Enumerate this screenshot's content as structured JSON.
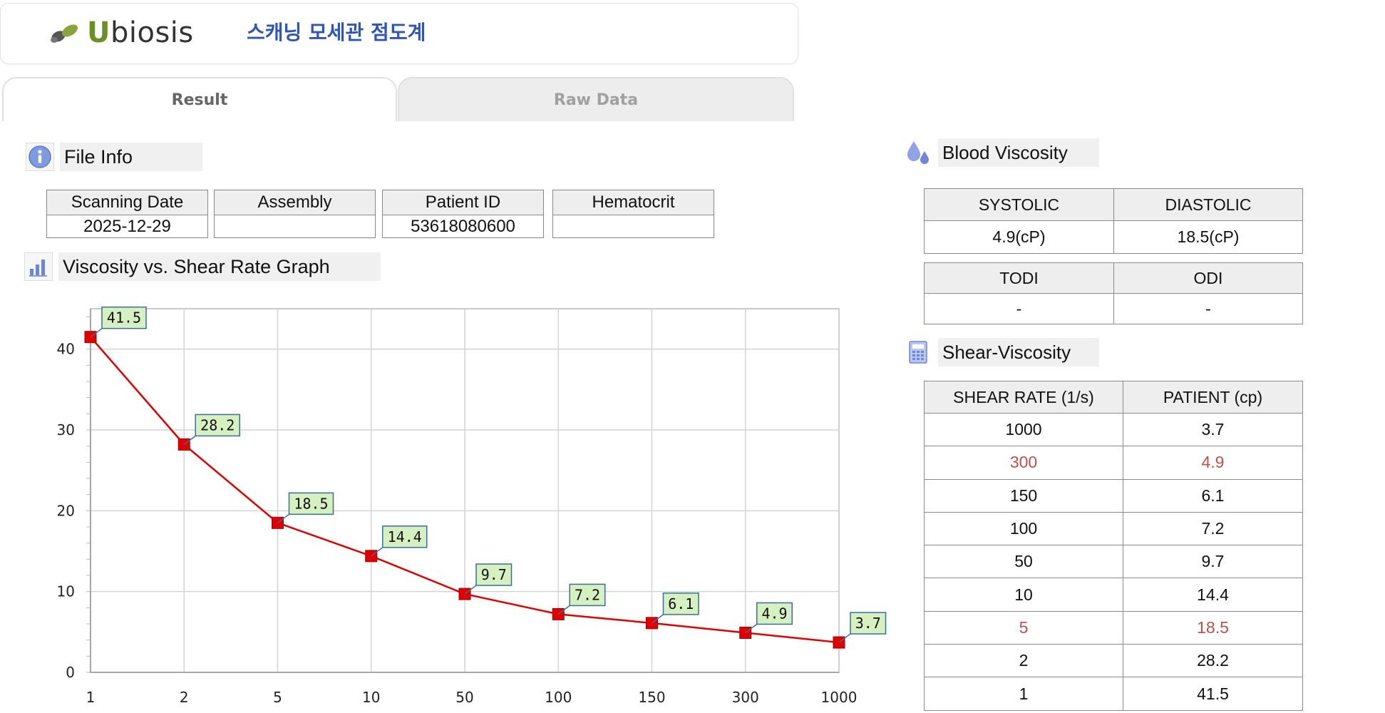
{
  "app": {
    "logo_text": "biosis",
    "logo_initial": "U",
    "title": "스캐닝 모세관 점도계"
  },
  "tabs": [
    {
      "label": "Result",
      "active": true
    },
    {
      "label": "Raw Data",
      "active": false
    }
  ],
  "file_info": {
    "heading": "File Info",
    "columns": [
      {
        "label": "Scanning Date",
        "value": "2025-12-29"
      },
      {
        "label": "Assembly",
        "value": ""
      },
      {
        "label": "Patient ID",
        "value": "53618080600"
      },
      {
        "label": "Hematocrit",
        "value": ""
      }
    ]
  },
  "graph": {
    "heading": "Viscosity vs. Shear Rate Graph"
  },
  "chart_data": {
    "type": "line",
    "x": [
      "1",
      "2",
      "5",
      "10",
      "50",
      "100",
      "150",
      "300",
      "1000"
    ],
    "values": [
      41.5,
      28.2,
      18.5,
      14.4,
      9.7,
      7.2,
      6.1,
      4.9,
      3.7
    ],
    "data_labels": [
      "41.5",
      "28.2",
      "18.5",
      "14.4",
      "9.7",
      "7.2",
      "6.1",
      "4.9",
      "3.7"
    ],
    "yticks": [
      "0",
      "10",
      "20",
      "30",
      "40"
    ],
    "ylim": [
      0,
      45
    ],
    "grid": true,
    "line_color": "#e00000",
    "label_bg": "#d6f0c2",
    "label_border": "#3a6f9a"
  },
  "blood_viscosity": {
    "heading": "Blood Viscosity",
    "systolic_label": "SYSTOLIC",
    "diastolic_label": "DIASTOLIC",
    "systolic_value": "4.9(cP)",
    "diastolic_value": "18.5(cP)",
    "todi_label": "TODI",
    "odi_label": "ODI",
    "todi_value": "-",
    "odi_value": "-"
  },
  "shear_viscosity": {
    "heading": "Shear-Viscosity",
    "col_shear": "SHEAR RATE (1/s)",
    "col_patient": "PATIENT (cp)",
    "rows": [
      {
        "shear": "1000",
        "patient": "3.7",
        "highlight": false
      },
      {
        "shear": "300",
        "patient": "4.9",
        "highlight": true
      },
      {
        "shear": "150",
        "patient": "6.1",
        "highlight": false
      },
      {
        "shear": "100",
        "patient": "7.2",
        "highlight": false
      },
      {
        "shear": "50",
        "patient": "9.7",
        "highlight": false
      },
      {
        "shear": "10",
        "patient": "14.4",
        "highlight": false
      },
      {
        "shear": "5",
        "patient": "18.5",
        "highlight": true
      },
      {
        "shear": "2",
        "patient": "28.2",
        "highlight": false
      },
      {
        "shear": "1",
        "patient": "41.5",
        "highlight": false
      }
    ],
    "highlight_color": "#c0504d"
  }
}
